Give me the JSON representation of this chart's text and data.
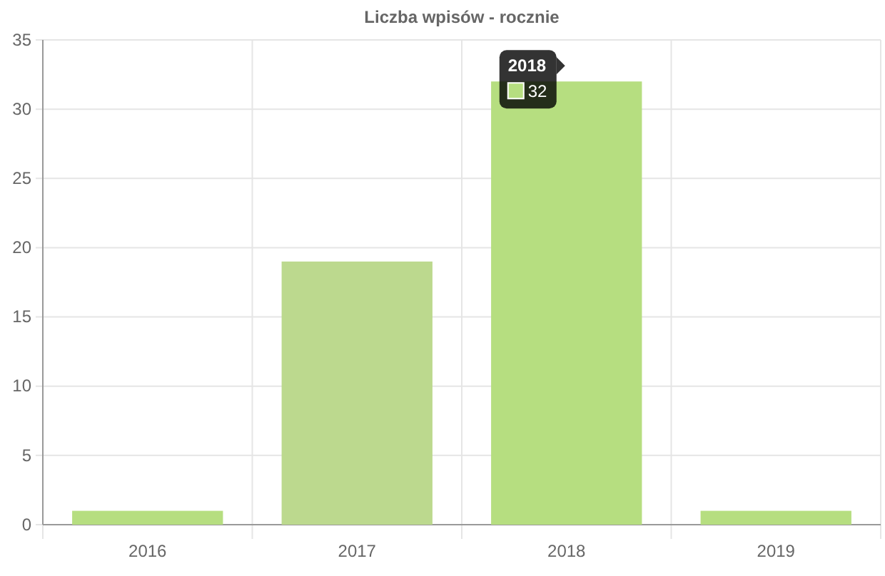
{
  "chart_data": {
    "type": "bar",
    "title": "Liczba wpisów - rocznie",
    "categories": [
      "2016",
      "2017",
      "2018",
      "2019"
    ],
    "values": [
      1,
      19,
      32,
      1
    ],
    "colors": [
      "#b6de80",
      "#bcd98e",
      "#b6de80",
      "#b6de80"
    ],
    "value_labels": [
      null,
      null,
      "32",
      null
    ],
    "ylim": [
      0,
      35
    ],
    "yticks": [
      0,
      5,
      10,
      15,
      20,
      25,
      30,
      35
    ],
    "grid": true
  }
}
